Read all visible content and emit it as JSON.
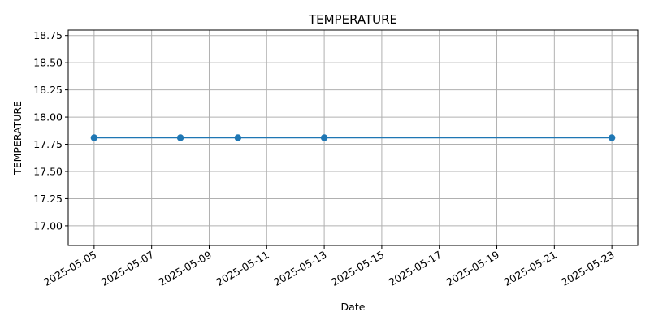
{
  "chart_data": {
    "type": "line",
    "title": "TEMPERATURE",
    "xlabel": "Date",
    "ylabel": "TEMPERATURE",
    "x_tick_labels": [
      "2025-05-05",
      "2025-05-07",
      "2025-05-09",
      "2025-05-11",
      "2025-05-13",
      "2025-05-15",
      "2025-05-17",
      "2025-05-19",
      "2025-05-21",
      "2025-05-23"
    ],
    "y_tick_labels": [
      "17.00",
      "17.25",
      "17.50",
      "17.75",
      "18.00",
      "18.25",
      "18.50",
      "18.75"
    ],
    "y_ticks": [
      17.0,
      17.25,
      17.5,
      17.75,
      18.0,
      18.25,
      18.5,
      18.75
    ],
    "xlim": [
      "2025-05-04",
      "2025-05-24"
    ],
    "ylim": [
      16.82,
      18.8
    ],
    "grid": true,
    "series": [
      {
        "x": [
          "2025-05-05",
          "2025-05-08",
          "2025-05-10",
          "2025-05-13",
          "2025-05-23"
        ],
        "y": [
          17.81,
          17.81,
          17.81,
          17.81,
          17.81
        ],
        "color": "#1f77b4",
        "marker": "circle"
      }
    ]
  }
}
